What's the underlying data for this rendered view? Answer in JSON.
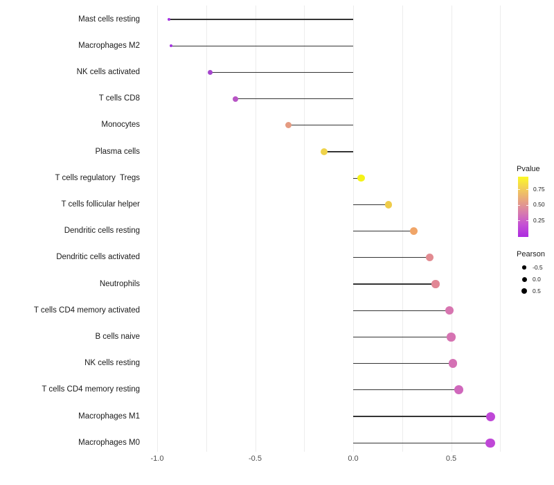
{
  "chart_data": {
    "type": "scatter",
    "subtype": "horizontal-lollipop",
    "title": "",
    "xlabel": "",
    "ylabel": "",
    "xlim": [
      -1.07,
      0.8
    ],
    "grid": true,
    "gridline_values": [
      -1.0,
      -0.75,
      -0.5,
      -0.25,
      0.0,
      0.25,
      0.5,
      0.75
    ],
    "x_ticks": [
      {
        "label": "-1.0",
        "value": -1.0
      },
      {
        "label": "-0.5",
        "value": -0.5
      },
      {
        "label": "0.0",
        "value": 0.0
      },
      {
        "label": "0.5",
        "value": 0.5
      }
    ],
    "rows": [
      {
        "label": "Mast cells resting",
        "pearson": -0.94,
        "dot_color": "#A433DF",
        "dot_diameter": 4
      },
      {
        "label": "Macrophages M2",
        "pearson": -0.93,
        "dot_color": "#A433DF",
        "dot_diameter": 4.5
      },
      {
        "label": "NK cells activated",
        "pearson": -0.73,
        "dot_color": "#A545CD",
        "dot_diameter": 7
      },
      {
        "label": "T cells CD8",
        "pearson": -0.6,
        "dot_color": "#B855C5",
        "dot_diameter": 8
      },
      {
        "label": "Monocytes",
        "pearson": -0.33,
        "dot_color": "#E59B81",
        "dot_diameter": 9
      },
      {
        "label": "Plasma cells",
        "pearson": -0.15,
        "dot_color": "#EFD34A",
        "dot_diameter": 10
      },
      {
        "label": "T cells regulatory  Tregs",
        "pearson": 0.04,
        "dot_color": "#F5F318",
        "dot_diameter": 10.5
      },
      {
        "label": "T cells follicular helper",
        "pearson": 0.18,
        "dot_color": "#EFCC4A",
        "dot_diameter": 10.5
      },
      {
        "label": "Dendritic cells resting",
        "pearson": 0.31,
        "dot_color": "#F0A568",
        "dot_diameter": 11
      },
      {
        "label": "Dendritic cells activated",
        "pearson": 0.39,
        "dot_color": "#E28B91",
        "dot_diameter": 11.3
      },
      {
        "label": "Neutrophils",
        "pearson": 0.42,
        "dot_color": "#E18795",
        "dot_diameter": 11.5
      },
      {
        "label": "T cells CD4 memory activated",
        "pearson": 0.49,
        "dot_color": "#D775B0",
        "dot_diameter": 12
      },
      {
        "label": "B cells naive",
        "pearson": 0.5,
        "dot_color": "#D673B2",
        "dot_diameter": 12.3
      },
      {
        "label": "NK cells resting",
        "pearson": 0.51,
        "dot_color": "#D471B4",
        "dot_diameter": 12.3
      },
      {
        "label": "T cells CD4 memory resting",
        "pearson": 0.54,
        "dot_color": "#D068BC",
        "dot_diameter": 12.7
      },
      {
        "label": "Macrophages M1",
        "pearson": 0.7,
        "dot_color": "#BF47D7",
        "dot_diameter": 13
      },
      {
        "label": "Macrophages M0",
        "pearson": 0.7,
        "dot_color": "#BF47D7",
        "dot_diameter": 13.3
      }
    ]
  },
  "legend": {
    "pvalue": {
      "title": "Pvalue",
      "gradient_top_to_bottom": [
        "#FCF926",
        "#F2CD58",
        "#E7A381",
        "#D77BAE",
        "#C44FD5",
        "#AC2BDF"
      ],
      "ticks": [
        {
          "label": "0.75",
          "offset": 18
        },
        {
          "label": "0.50",
          "offset": 40.5
        },
        {
          "label": "0.25",
          "offset": 63
        }
      ]
    },
    "pearson": {
      "title": "Pearson",
      "entries": [
        {
          "label": "-0.5",
          "diameter": 5.5
        },
        {
          "label": "0.0",
          "diameter": 7
        },
        {
          "label": "0.5",
          "diameter": 8
        }
      ]
    }
  },
  "colors": {
    "background": "#FFFFFF",
    "grid": "#ECECEC",
    "stem": "#333333",
    "axis_text": "#4D4D4D",
    "label_text": "#1A1A1A",
    "legend_dot": "#000000"
  }
}
